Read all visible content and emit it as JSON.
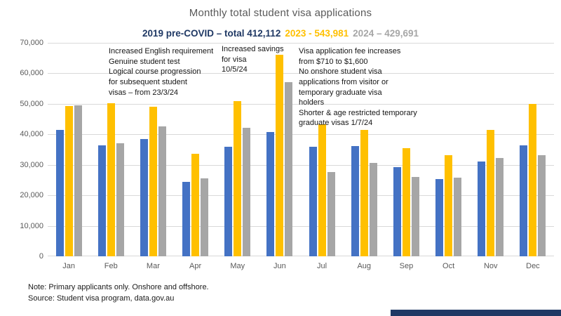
{
  "title": "Monthly total student visa applications",
  "legend": {
    "items": [
      {
        "label": "2019 pre-COVID – total 412,112",
        "color": "#1F3864"
      },
      {
        "label": "2023  - 543,981",
        "color": "#FFC000"
      },
      {
        "label": "2024 – 429,691",
        "color": "#A6A6A6"
      }
    ]
  },
  "chart_data": {
    "type": "bar",
    "title": "Monthly total student visa applications",
    "categories": [
      "Jan",
      "Feb",
      "Mar",
      "Apr",
      "May",
      "Jun",
      "Jul",
      "Aug",
      "Sep",
      "Oct",
      "Nov",
      "Dec"
    ],
    "series": [
      {
        "name": "2019 pre-COVID",
        "total": 412112,
        "color": "#4472C4",
        "values": [
          41500,
          36500,
          38400,
          24300,
          35900,
          40800,
          35900,
          36100,
          29300,
          25400,
          31000,
          36500
        ]
      },
      {
        "name": "2023",
        "total": 543981,
        "color": "#FFC000",
        "values": [
          49200,
          50300,
          49100,
          33700,
          51000,
          66000,
          43300,
          41400,
          35500,
          33100,
          41500,
          50000
        ]
      },
      {
        "name": "2024",
        "total": 429691,
        "color": "#A6A6A6",
        "values": [
          49400,
          37000,
          42600,
          25500,
          42100,
          57200,
          27700,
          30700,
          26100,
          25700,
          32300,
          33200
        ]
      }
    ],
    "xlabel": "",
    "ylabel": "",
    "ylim": [
      0,
      70000
    ],
    "y_tick_step": 10000,
    "y_ticks": [
      "0",
      "10,000",
      "20,000",
      "30,000",
      "40,000",
      "50,000",
      "60,000",
      "70,000"
    ],
    "grid": true,
    "legend_position": "top"
  },
  "annotations": [
    {
      "text": "Increased English requirement\nGenuine student test\nLogical course progression\nfor subsequent student\nvisas – from 23/3/24"
    },
    {
      "text": "Increased savings\nfor visa\n10/5/24"
    },
    {
      "text": "Visa application fee increases\nfrom $710 to $1,600\nNo onshore student visa\napplications from visitor or\ntemporary graduate visa\nholders\nShorter & age restricted temporary\ngraduate visas 1/7/24"
    }
  ],
  "notes": {
    "line1": "Note: Primary applicants only. Onshore and offshore.",
    "line2": "Source: Student visa program, data.gov.au"
  },
  "colors": {
    "title_text": "#595959",
    "axis_text": "#595959",
    "gridline": "#D9D9D9",
    "annotation_text": "#151515",
    "footer_bar": "#1F3864"
  }
}
